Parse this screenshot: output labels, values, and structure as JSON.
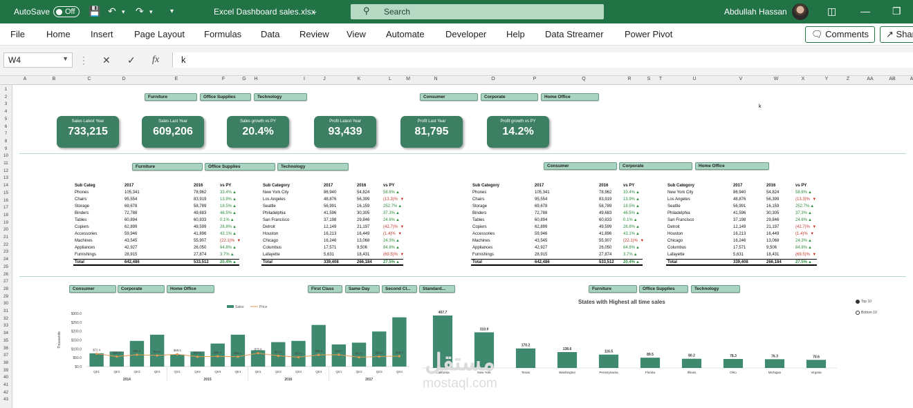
{
  "titlebar": {
    "autosave_label": "AutoSave",
    "autosave_state": "Off",
    "file_name": "Excel Dashboard sales.xlsx",
    "search_placeholder": "Search",
    "user_name": "Abdullah Hassan"
  },
  "menu": [
    "File",
    "Home",
    "Insert",
    "Page Layout",
    "Formulas",
    "Data",
    "Review",
    "View",
    "Automate",
    "Developer",
    "Help",
    "Data Streamer",
    "Power Pivot"
  ],
  "menu_right": {
    "comments": "Comments",
    "share": "Shar"
  },
  "formula_bar": {
    "name_box": "W4",
    "fx": "fx",
    "value": "k"
  },
  "columns": [
    "A",
    "B",
    "C",
    "D",
    "E",
    "F",
    "G",
    "H",
    "I",
    "J",
    "K",
    "L",
    "M",
    "N",
    "O",
    "P",
    "Q",
    "R",
    "S",
    "T",
    "U",
    "V",
    "W",
    "X",
    "Y",
    "Z",
    "AA",
    "AB",
    "A"
  ],
  "rows": [
    "1",
    "2",
    "3",
    "4",
    "5",
    "6",
    "7",
    "8",
    "9",
    "10",
    "11",
    "12",
    "13",
    "14",
    "15",
    "16",
    "17",
    "18",
    "19",
    "20",
    "21",
    "22",
    "23",
    "24",
    "25",
    "26",
    "27",
    "28",
    "29",
    "30",
    "31",
    "32",
    "33",
    "34",
    "35",
    "36",
    "37",
    "38",
    "39",
    "40",
    "41",
    "42",
    "43"
  ],
  "cell_w4": "k",
  "slicers": {
    "top_category": [
      "Furniture",
      "Office Supplies",
      "Technology"
    ],
    "top_segment": [
      "Consumer",
      "Corporate",
      "Home Office"
    ],
    "mid_category": [
      "Furniture",
      "Office Supplies",
      "Technology"
    ],
    "mid_segment": [
      "Consumer",
      "Corporate",
      "Home Office"
    ],
    "bottom_segment": [
      "Consumer",
      "Corporate",
      "Home Office"
    ],
    "bottom_ship": [
      "First Class",
      "Same Day",
      "Second Cl...",
      "Standard..."
    ],
    "bottom_category": [
      "Furniture",
      "Office Supplies",
      "Technology"
    ]
  },
  "kpis": [
    {
      "title": "Sales Latest Year",
      "value": "733,215"
    },
    {
      "title": "Sales Last Year",
      "value": "609,206"
    },
    {
      "title": "Sales growth vs PY",
      "value": "20.4%"
    },
    {
      "title": "Profit Latest Year",
      "value": "93,439"
    },
    {
      "title": "Profit Last Year",
      "value": "81,795"
    },
    {
      "title": "Profit growth vs PY",
      "value": "14.2%"
    }
  ],
  "subcat_table": {
    "headers": [
      "Sub Categ",
      "2017",
      "2016",
      "vs PY"
    ],
    "rows": [
      [
        "Phones",
        "105,341",
        "78,962",
        "33.4%",
        "up"
      ],
      [
        "Chairs",
        "95,554",
        "83,919",
        "13.9%",
        "up"
      ],
      [
        "Storage",
        "69,678",
        "58,789",
        "18.5%",
        "up"
      ],
      [
        "Binders",
        "72,788",
        "49,683",
        "46.5%",
        "up"
      ],
      [
        "Tables",
        "60,894",
        "60,833",
        "0.1%",
        "up"
      ],
      [
        "Copiers",
        "62,899",
        "49,599",
        "26.8%",
        "up"
      ],
      [
        "Accessories",
        "59,946",
        "41,896",
        "43.1%",
        "up"
      ],
      [
        "Machines",
        "43,545",
        "55,907",
        "(22.1)%",
        "down"
      ],
      [
        "Appliances",
        "42,927",
        "26,050",
        "64.8%",
        "up"
      ],
      [
        "Furnishings",
        "28,915",
        "27,874",
        "3.7%",
        "up"
      ]
    ],
    "total": [
      "Total",
      "642,486",
      "533,512",
      "20.4%",
      "up"
    ]
  },
  "subcat_table_b": {
    "headers": [
      "Sub Category",
      "2017",
      "2016",
      "vs PY"
    ]
  },
  "city_table": {
    "headers": [
      "Sub Category",
      "2017",
      "2016",
      "vs PY"
    ],
    "rows": [
      [
        "New York City",
        "86,940",
        "54,824",
        "58.6%",
        "up"
      ],
      [
        "Los Angeles",
        "48,876",
        "56,399",
        "(13.3)%",
        "down"
      ],
      [
        "Seattle",
        "56,991",
        "16,159",
        "252.7%",
        "up"
      ],
      [
        "Philadelphia",
        "41,596",
        "30,305",
        "37.3%",
        "up"
      ],
      [
        "San Francisco",
        "37,198",
        "29,846",
        "24.6%",
        "up"
      ],
      [
        "Detroit",
        "12,149",
        "21,197",
        "(42.7)%",
        "down"
      ],
      [
        "Houston",
        "16,213",
        "16,449",
        "(1.4)%",
        "down"
      ],
      [
        "Chicago",
        "16,246",
        "13,068",
        "24.3%",
        "up"
      ],
      [
        "Columbus",
        "17,571",
        "9,506",
        "84.8%",
        "up"
      ],
      [
        "Lafayette",
        "5,631",
        "18,431",
        "(69.5)%",
        "down"
      ]
    ],
    "total": [
      "Total",
      "339,408",
      "266,184",
      "27.5%",
      "up"
    ]
  },
  "combo_chart": {
    "type": "bar",
    "legend": [
      "Sales",
      "Price"
    ],
    "ylabel": "Thousands",
    "yticks": [
      "$0.0",
      "$50.0",
      "$100.0",
      "$150.0",
      "$200.0",
      "$250.0",
      "$300.0"
    ],
    "ylim": [
      0,
      300
    ],
    "categories": [
      "Qtr1",
      "Qtr2",
      "Qtr3",
      "Qtr4",
      "Qtr1",
      "Qtr2",
      "Qtr3",
      "Qtr4",
      "Qtr1",
      "Qtr2",
      "Qtr3",
      "Qtr4",
      "Qtr1",
      "Qtr2",
      "Qtr3",
      "Qtr4"
    ],
    "years": [
      "2014",
      "2015",
      "2016",
      "2017"
    ],
    "series": [
      {
        "name": "Sales",
        "values": [
          75,
          85,
          145,
          180,
          68,
          85,
          130,
          180,
          92,
          138,
          145,
          235,
          125,
          135,
          198,
          278
        ]
      },
      {
        "name": "Price",
        "values": [
          72.4,
          56.8,
          66.5,
          62.6,
          69.5,
          55.6,
          58.1,
          55.4,
          75.8,
          60.8,
          53.0,
          65.8,
          66.7,
          52.4,
          56.8,
          59.0
        ]
      }
    ],
    "price_labels": [
      "$72.4",
      "$56.8",
      "$66.5",
      "$62.6",
      "$69.5",
      "$55.6",
      "$58.1",
      "$55.4",
      "$75.8",
      "$60.8",
      "$53.0",
      "$65.8",
      "$66.7",
      "$52.4",
      "$56.8",
      "$59.0"
    ]
  },
  "states_chart": {
    "type": "bar",
    "title": "States with Highest all time sales",
    "categories": [
      "California",
      "New York",
      "Texas",
      "Washington",
      "Pennsylvania",
      "Florida",
      "Illinois",
      "Ohio",
      "Michigan",
      "Virginia"
    ],
    "values": [
      457.7,
      310.9,
      170.2,
      138.6,
      116.5,
      89.5,
      80.2,
      78.3,
      76.3,
      70.6
    ],
    "value_labels": [
      "457.7",
      "310.9",
      "170.2",
      "138.6",
      "116.5",
      "89.5",
      "80.2",
      "78.3",
      "76.3",
      "70.6"
    ],
    "options": [
      "Top 10",
      "Bottom 10"
    ]
  },
  "colors": {
    "excel_green": "#217346",
    "kpi_green": "#3d7f62",
    "bar_green": "#3f8a6e",
    "line_orange": "#e39a52",
    "slicer_fill": "#a9d4c2"
  },
  "watermark": {
    "ar": "مستقل",
    "en": "mostaql.com"
  }
}
